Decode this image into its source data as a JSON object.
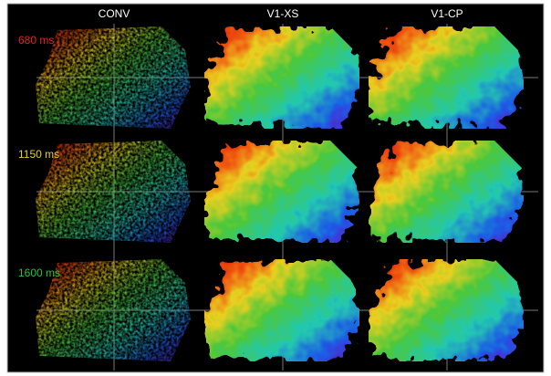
{
  "columns": [
    "CONV",
    "V1-XS",
    "V1-CP"
  ],
  "rows": [
    {
      "label": "680 ms",
      "color": "#e8231e"
    },
    {
      "label": "1150 ms",
      "color": "#e6d21c"
    },
    {
      "label": "1600 ms",
      "color": "#27c23a"
    }
  ]
}
